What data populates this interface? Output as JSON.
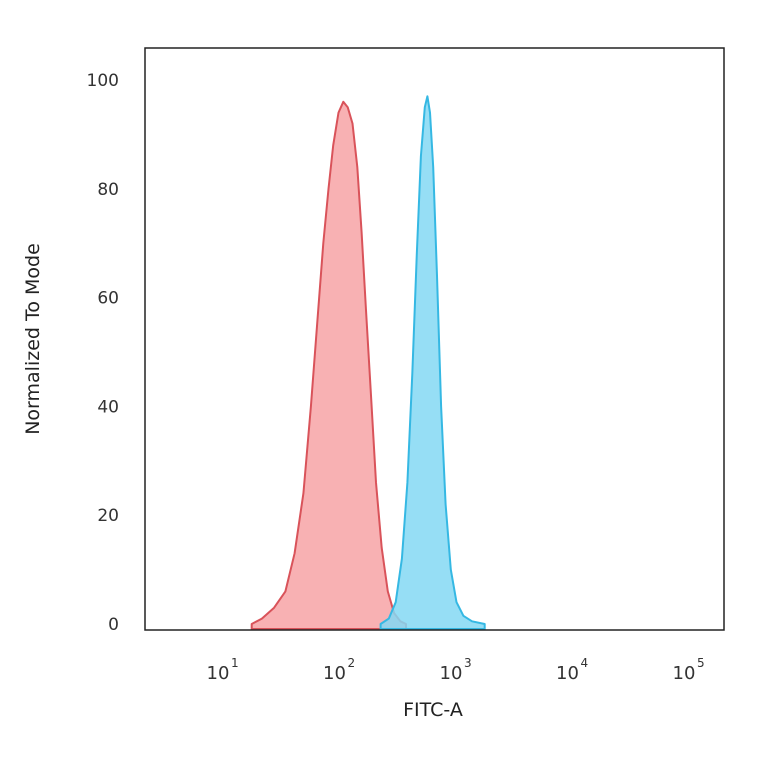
{
  "chart_data": {
    "type": "area",
    "title": "",
    "xlabel": "FITC-A",
    "ylabel": "Normalized To Mode",
    "x_scale": "log",
    "xlim": [
      2,
      200000
    ],
    "ylim": [
      0,
      105
    ],
    "x_ticks": [
      {
        "base": "10",
        "exp": "1",
        "value": 10
      },
      {
        "base": "10",
        "exp": "2",
        "value": 100
      },
      {
        "base": "10",
        "exp": "3",
        "value": 1000
      },
      {
        "base": "10",
        "exp": "4",
        "value": 10000
      },
      {
        "base": "10",
        "exp": "5",
        "value": 100000
      }
    ],
    "y_ticks": [
      "0",
      "20",
      "40",
      "60",
      "80",
      "100"
    ],
    "grid": false,
    "legend": "none",
    "series": [
      {
        "color_fill": "#f7a3a6",
        "color_line": "#d9535a",
        "points": [
          [
            18,
            0
          ],
          [
            22,
            1
          ],
          [
            28,
            3
          ],
          [
            35,
            6
          ],
          [
            42,
            13
          ],
          [
            50,
            24
          ],
          [
            58,
            40
          ],
          [
            66,
            56
          ],
          [
            74,
            70
          ],
          [
            82,
            80
          ],
          [
            90,
            88
          ],
          [
            100,
            94
          ],
          [
            110,
            96
          ],
          [
            120,
            95
          ],
          [
            132,
            92
          ],
          [
            145,
            84
          ],
          [
            158,
            72
          ],
          [
            172,
            58
          ],
          [
            190,
            42
          ],
          [
            210,
            26
          ],
          [
            235,
            14
          ],
          [
            265,
            6
          ],
          [
            300,
            2
          ],
          [
            340,
            0.5
          ],
          [
            380,
            0
          ]
        ]
      },
      {
        "color_fill": "#84d8f3",
        "color_line": "#35b8e3",
        "points": [
          [
            230,
            0
          ],
          [
            270,
            1
          ],
          [
            310,
            4
          ],
          [
            350,
            12
          ],
          [
            390,
            26
          ],
          [
            430,
            46
          ],
          [
            470,
            68
          ],
          [
            510,
            86
          ],
          [
            550,
            95
          ],
          [
            580,
            97
          ],
          [
            610,
            94
          ],
          [
            650,
            84
          ],
          [
            700,
            64
          ],
          [
            760,
            40
          ],
          [
            830,
            22
          ],
          [
            920,
            10
          ],
          [
            1030,
            4
          ],
          [
            1180,
            1.5
          ],
          [
            1400,
            0.5
          ],
          [
            1800,
            0
          ]
        ]
      }
    ]
  }
}
